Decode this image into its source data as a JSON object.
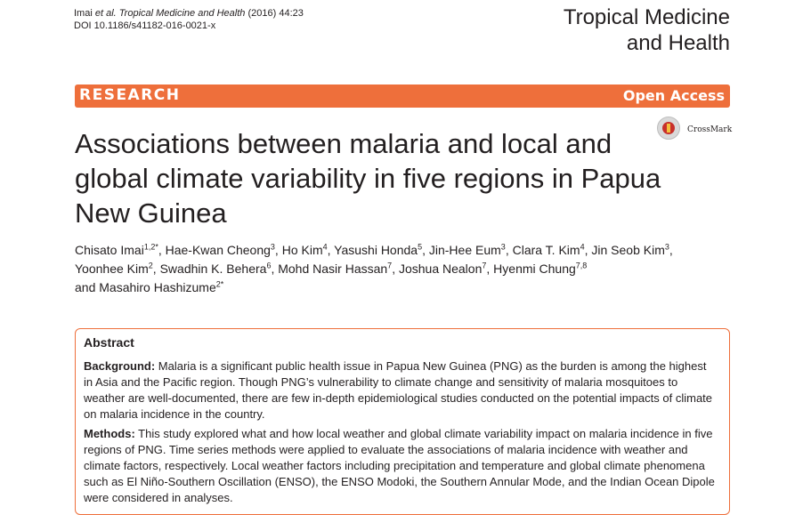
{
  "header": {
    "citation_authors": "Imai",
    "citation_etal": "et al.",
    "citation_journal": "Tropical Medicine and Health",
    "citation_volume": "(2016) 44:23",
    "doi": "DOI 10.1186/s41182-016-0021-x",
    "journal_line1": "Tropical Medicine",
    "journal_line2": "and Health"
  },
  "banner": {
    "type": "RESEARCH",
    "access": "Open Access",
    "background_color": "#ee6f3b"
  },
  "crossmark": {
    "label": "CrossMark",
    "icon": "crossmark-icon"
  },
  "title": "Associations between malaria and local and global climate variability in five regions in Papua New Guinea",
  "authors": [
    {
      "name": "Chisato Imai",
      "sup": "1,2*",
      "sep": ", "
    },
    {
      "name": "Hae-Kwan Cheong",
      "sup": "3",
      "sep": ", "
    },
    {
      "name": "Ho Kim",
      "sup": "4",
      "sep": ", "
    },
    {
      "name": "Yasushi Honda",
      "sup": "5",
      "sep": ", "
    },
    {
      "name": "Jin-Hee Eum",
      "sup": "3",
      "sep": ", "
    },
    {
      "name": "Clara T. Kim",
      "sup": "4",
      "sep": ", "
    },
    {
      "name": "Jin Seob Kim",
      "sup": "3",
      "sep": ","
    },
    {
      "name": "Yoonhee Kim",
      "sup": "2",
      "sep": ", "
    },
    {
      "name": "Swadhin K. Behera",
      "sup": "6",
      "sep": ", "
    },
    {
      "name": "Mohd Nasir Hassan",
      "sup": "7",
      "sep": ", "
    },
    {
      "name": "Joshua Nealon",
      "sup": "7",
      "sep": ", "
    },
    {
      "name": "Hyenmi Chung",
      "sup": "7,8",
      "sep": ""
    },
    {
      "name": "and Masahiro Hashizume",
      "sup": "2*",
      "sep": ""
    }
  ],
  "abstract": {
    "heading": "Abstract",
    "background_label": "Background:",
    "background_text": "Malaria is a significant public health issue in Papua New Guinea (PNG) as the burden is among the highest in Asia and the Pacific region. Though PNG’s vulnerability to climate change and sensitivity of malaria mosquitoes to weather are well-documented, there are few in-depth epidemiological studies conducted on the potential impacts of climate on malaria incidence in the country.",
    "methods_label": "Methods:",
    "methods_text": "This study explored what and how local weather and global climate variability impact on malaria incidence in five regions of PNG. Time series methods were applied to evaluate the associations of malaria incidence with weather and climate factors, respectively. Local weather factors including precipitation and temperature and global climate phenomena such as El Niño-Southern Oscillation (ENSO), the ENSO Modoki, the Southern Annular Mode, and the Indian Ocean Dipole were considered in analyses."
  }
}
